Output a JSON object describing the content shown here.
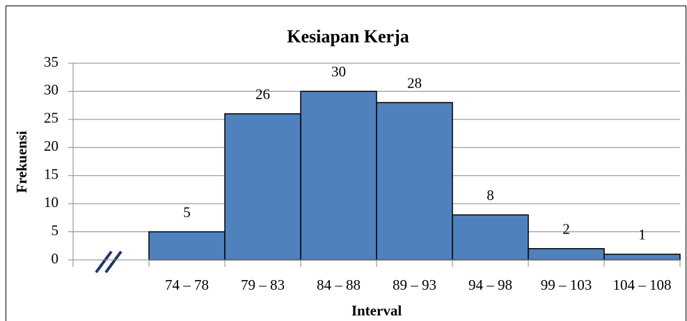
{
  "chart_data": {
    "type": "bar",
    "title": "Kesiapan Kerja",
    "x_label": "Interval",
    "y_label": "Frekuensi",
    "categories": [
      null,
      "74 – 78",
      "79 – 83",
      "84 – 88",
      "89 – 93",
      "94 – 98",
      "99 – 103",
      "104 – 108"
    ],
    "values": [
      null,
      5,
      26,
      30,
      28,
      8,
      2,
      1
    ],
    "color": "#4f81bd",
    "ylim": [
      0,
      35
    ],
    "yticks": [
      0,
      5,
      10,
      15,
      20,
      25,
      30,
      35
    ],
    "grid": true
  }
}
